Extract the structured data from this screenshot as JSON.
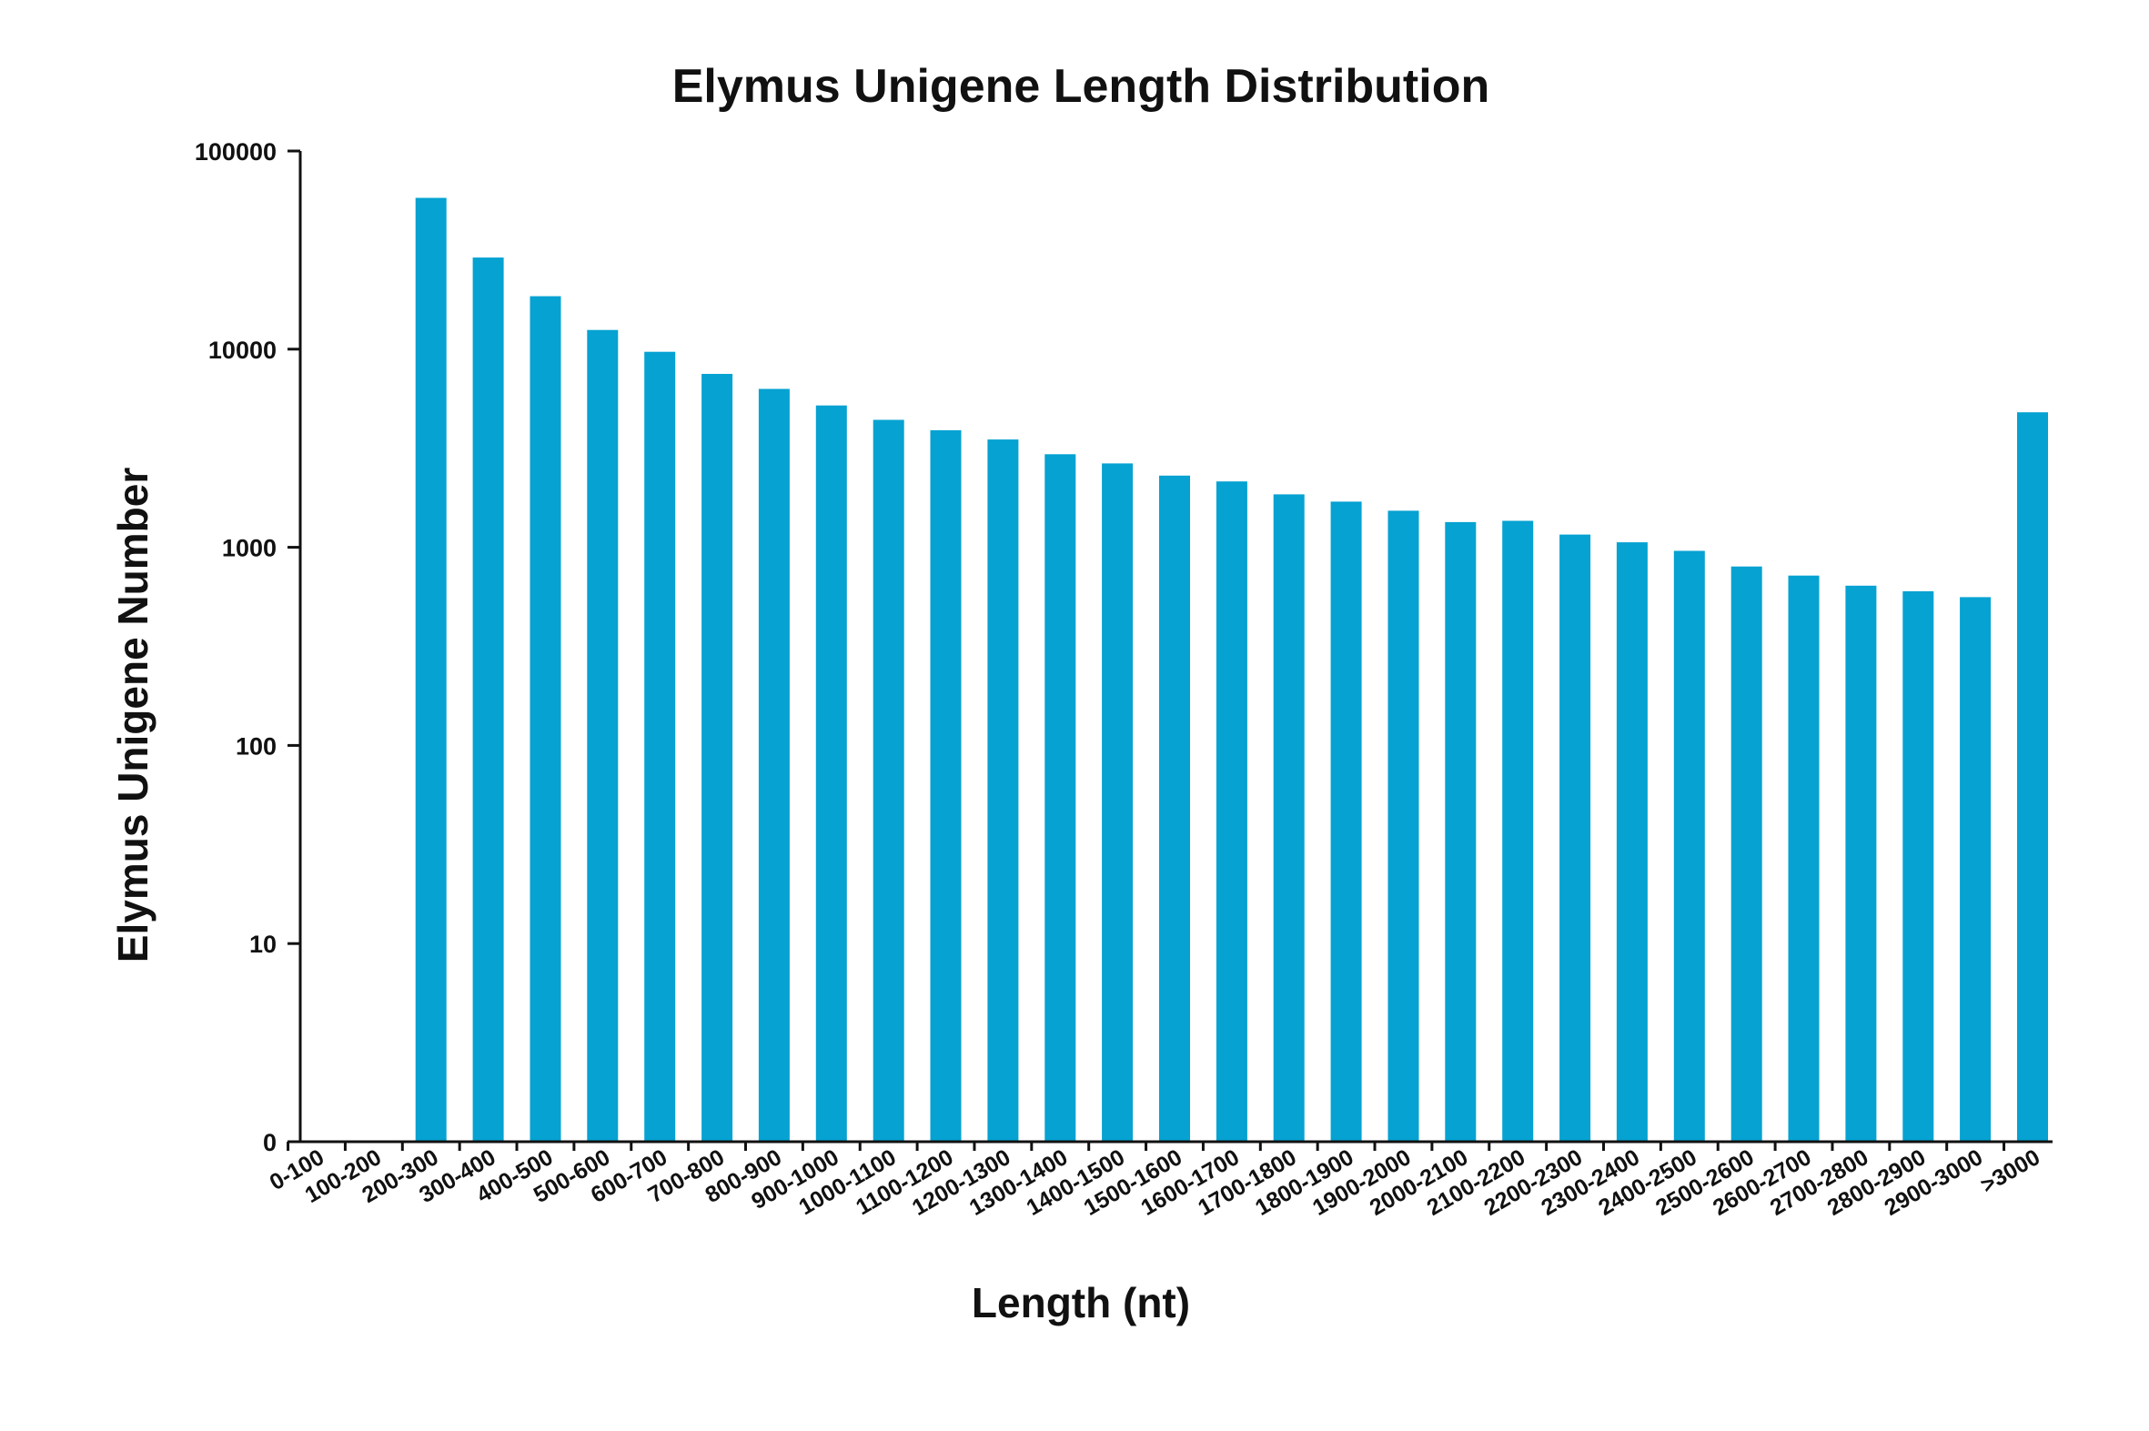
{
  "chart_data": {
    "type": "bar",
    "title": "Elymus Unigene Length Distribution",
    "xlabel": "Length (nt)",
    "ylabel": "Elymus Unigene Number",
    "yscale": "log",
    "ylim": [
      1,
      100000
    ],
    "yticks": [
      {
        "value": 1,
        "label": "0"
      },
      {
        "value": 10,
        "label": "10"
      },
      {
        "value": 100,
        "label": "100"
      },
      {
        "value": 1000,
        "label": "1000"
      },
      {
        "value": 10000,
        "label": "10000"
      },
      {
        "value": 100000,
        "label": "100000"
      }
    ],
    "bar_color": "#05a2d2",
    "categories": [
      "0-100",
      "100-200",
      "200-300",
      "300-400",
      "400-500",
      "500-600",
      "600-700",
      "700-800",
      "800-900",
      "900-1000",
      "1000-1100",
      "1100-1200",
      "1200-1300",
      "1300-1400",
      "1400-1500",
      "1500-1600",
      "1600-1700",
      "1700-1800",
      "1800-1900",
      "1900-2000",
      "2000-2100",
      "2100-2200",
      "2200-2300",
      "2300-2400",
      "2400-2500",
      "2500-2600",
      "2600-2700",
      "2700-2800",
      "2800-2900",
      "2900-3000",
      ">3000"
    ],
    "values": [
      0,
      0,
      58000,
      29000,
      18500,
      12500,
      9700,
      7500,
      6300,
      5200,
      4400,
      3900,
      3500,
      2950,
      2650,
      2300,
      2150,
      1850,
      1700,
      1530,
      1340,
      1360,
      1160,
      1060,
      960,
      800,
      720,
      640,
      600,
      560,
      4800
    ],
    "grid": false,
    "legend": "none"
  }
}
